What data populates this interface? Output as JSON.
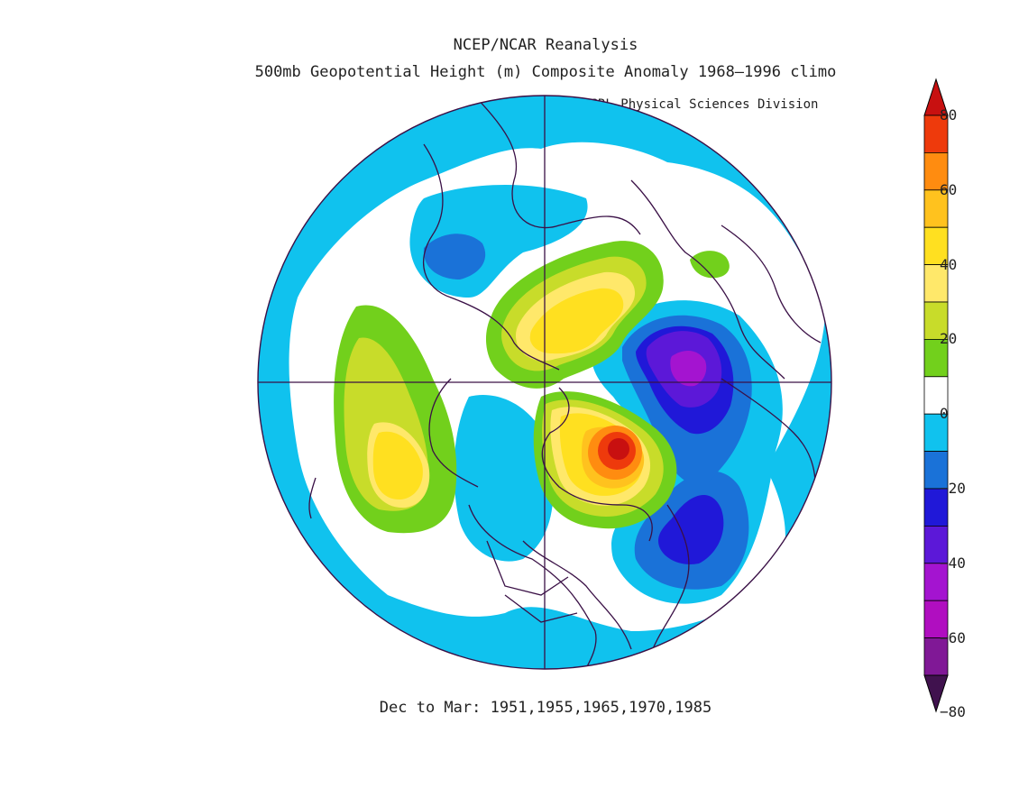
{
  "header": {
    "title_line1": "NCEP/NCAR Reanalysis",
    "title_line2": "500mb Geopotential Height (m) Composite Anomaly 1968–1996 climo",
    "credit": "NOAA/ESRL Physical Sciences Division"
  },
  "footer": {
    "subtitle": "Dec to Mar: 1951,1955,1965,1970,1985"
  },
  "colorbar": {
    "labels": [
      "80",
      "60",
      "40",
      "20",
      "0",
      "−20",
      "−40",
      "−60",
      "−80"
    ],
    "levels": [
      {
        "range": "above 80",
        "color": "#c81010"
      },
      {
        "range": "70 to 80",
        "color": "#ee3a0c"
      },
      {
        "range": "60 to 70",
        "color": "#ff8c10"
      },
      {
        "range": "50 to 60",
        "color": "#ffc21e"
      },
      {
        "range": "40 to 50",
        "color": "#ffe020"
      },
      {
        "range": "30 to 40",
        "color": "#ffe86a"
      },
      {
        "range": "20 to 30",
        "color": "#c8dc2a"
      },
      {
        "range": "10 to 20",
        "color": "#72d01c"
      },
      {
        "range": "-10 to 10",
        "color": "#ffffff"
      },
      {
        "range": "-20 to -10",
        "color": "#10c2ee"
      },
      {
        "range": "-30 to -20",
        "color": "#1a72d8"
      },
      {
        "range": "-40 to -30",
        "color": "#2018d8"
      },
      {
        "range": "-50 to -40",
        "color": "#5c18d8"
      },
      {
        "range": "-60 to -50",
        "color": "#a414d0"
      },
      {
        "range": "-70 to -60",
        "color": "#b00ec0"
      },
      {
        "range": "-80 to -70",
        "color": "#801896"
      },
      {
        "range": "below -80",
        "color": "#40124e"
      }
    ]
  },
  "map": {
    "projection": "north polar stereographic",
    "features": [
      {
        "name": "central-pacific-positive-anomaly",
        "peak": "above 40"
      },
      {
        "name": "north-america-positive-anomaly",
        "peak": "above 80"
      },
      {
        "name": "arctic-siberia-positive-anomaly",
        "peak": "above 40"
      },
      {
        "name": "north-atlantic-europe-negative-anomaly",
        "peak": "below -60"
      },
      {
        "name": "east-asia-negative-anomaly",
        "peak": "below -30"
      },
      {
        "name": "hudson-bay-negative-anomaly",
        "peak": "below -20"
      }
    ]
  }
}
